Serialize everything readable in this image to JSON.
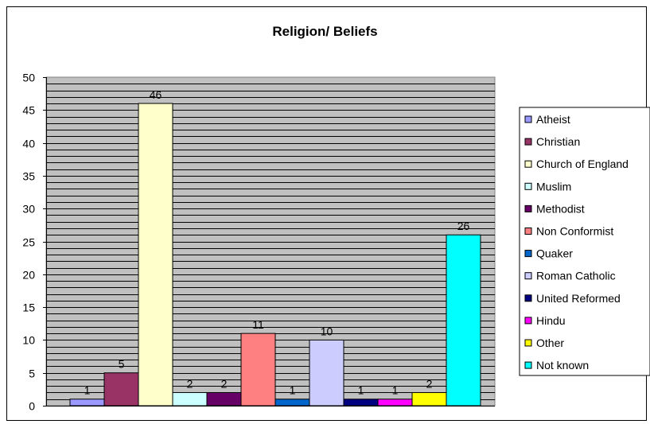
{
  "chart_data": {
    "type": "bar",
    "title": "Religion/ Beliefs",
    "categories": [
      "Atheist",
      "Christian",
      "Church of England",
      "Muslim",
      "Methodist",
      "Non Conformist",
      "Quaker",
      "Roman Catholic",
      "United Reformed",
      "Hindu",
      "Other",
      "Not known"
    ],
    "values": [
      1,
      5,
      46,
      2,
      2,
      11,
      1,
      10,
      1,
      1,
      2,
      26
    ],
    "colors": [
      "#9999FF",
      "#993366",
      "#FFFFCC",
      "#CCFFFF",
      "#660066",
      "#FF8080",
      "#0066CC",
      "#CCCCFF",
      "#000080",
      "#FF00FF",
      "#FFFF00",
      "#00FFFF"
    ],
    "ylim": [
      0,
      50
    ],
    "yticks": [
      0,
      5,
      10,
      15,
      20,
      25,
      30,
      35,
      40,
      45,
      50
    ],
    "plot_background": "#C0C0C0",
    "grid": true,
    "legend_position": "right",
    "xlabel": "",
    "ylabel": ""
  }
}
